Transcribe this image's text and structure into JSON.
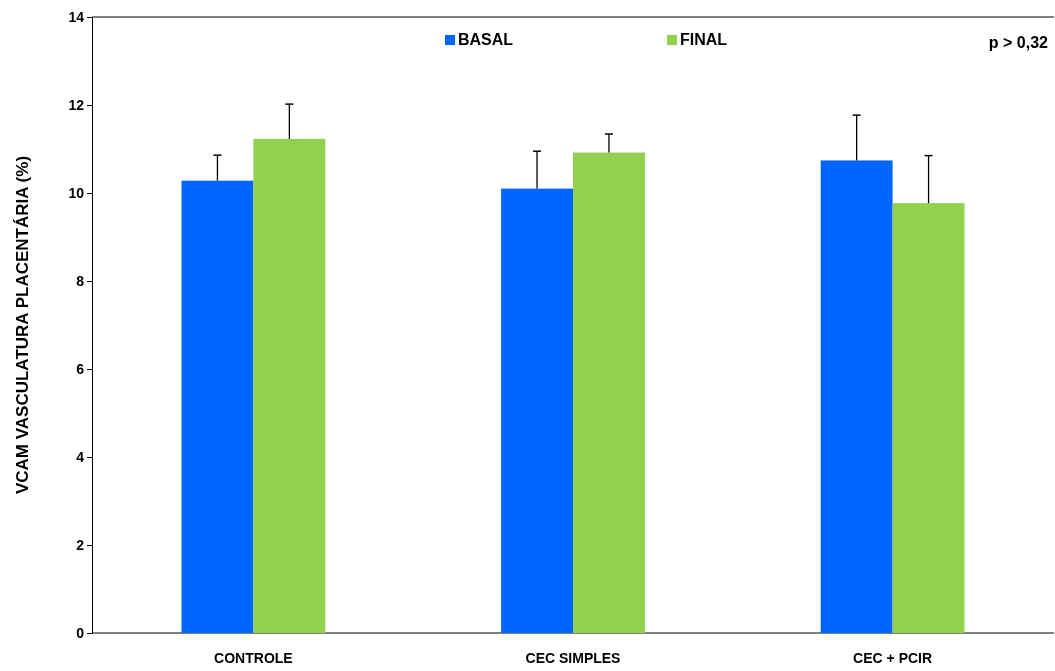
{
  "chart_data": {
    "type": "bar",
    "ylabel": "VCAM VASCULATURA PLACENTÁRIA  (%)",
    "categories": [
      "CONTROLE",
      "CEC SIMPLES",
      "CEC + PCIR"
    ],
    "series": [
      {
        "name": "BASAL",
        "color": "#0066ff",
        "values": [
          10.28,
          10.1,
          10.74
        ],
        "errors": [
          [
            10.28,
            10.86
          ],
          [
            10.1,
            10.95
          ],
          [
            10.74,
            11.77
          ]
        ]
      },
      {
        "name": "FINAL",
        "color": "#92d050",
        "values": [
          11.23,
          10.92,
          9.77
        ],
        "errors": [
          [
            11.23,
            12.02
          ],
          [
            10.92,
            11.34
          ],
          [
            9.77,
            10.85
          ]
        ]
      }
    ],
    "ylim": [
      0,
      14
    ],
    "yticks": [
      0,
      2,
      4,
      6,
      8,
      10,
      12,
      14
    ],
    "grid": false,
    "legend": "top",
    "annotations": [
      "p > 0,32"
    ]
  }
}
